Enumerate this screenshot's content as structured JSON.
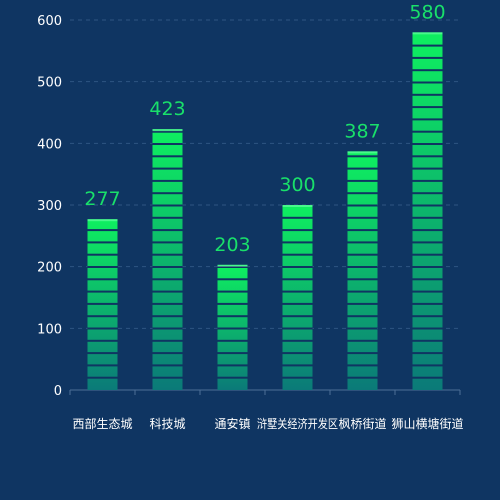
{
  "chart_data": {
    "type": "bar",
    "title": "",
    "xlabel": "",
    "ylabel": "",
    "categories": [
      "西部生态城",
      "科技城",
      "通安镇",
      "浒墅关经济开发区",
      "枫桥街道",
      "狮山横塘街道"
    ],
    "values": [
      277,
      423,
      203,
      300,
      387,
      580
    ],
    "ylim": [
      0,
      600
    ],
    "yticks": [
      0,
      100,
      200,
      300,
      400,
      500,
      600
    ],
    "grid": true,
    "legend": "none",
    "colors": {
      "background": "#0f3562",
      "bar_top": "#0ef060",
      "bar_bottom": "#0b7a78",
      "value_label": "#19e06a",
      "tick_label": "#ffffff"
    }
  }
}
